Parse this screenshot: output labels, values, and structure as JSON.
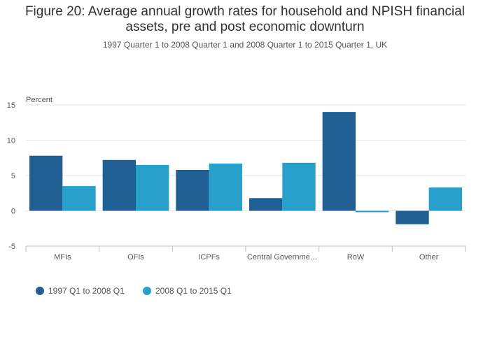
{
  "header": {
    "title_line1": "Figure 20: Average annual growth rates for household and NPISH financial",
    "title_line2": "assets, pre and post economic downturn",
    "subtitle": "1997 Quarter 1 to 2008 Quarter 1 and 2008 Quarter 1 to 2015 Quarter 1, UK"
  },
  "chart_data": {
    "type": "bar",
    "title": "Figure 20: Average annual growth rates for household and NPISH financial assets, pre and post economic downturn",
    "subtitle": "1997 Quarter 1 to 2008 Quarter 1 and 2008 Quarter 1 to 2015 Quarter 1, UK",
    "ylabel": "Percent",
    "xlabel": "",
    "categories": [
      "MFIs",
      "OFIs",
      "ICPFs",
      "Central Governme…",
      "RoW",
      "Other"
    ],
    "series": [
      {
        "name": "1997 Q1 to 2008 Q1",
        "color": "#206095",
        "values": [
          7.8,
          7.2,
          5.8,
          1.8,
          14.0,
          -1.9
        ]
      },
      {
        "name": "2008 Q1 to 2015 Q1",
        "color": "#27a0cc",
        "values": [
          3.5,
          6.5,
          6.7,
          6.8,
          -0.2,
          3.3
        ]
      }
    ],
    "ylim": [
      -5,
      15
    ],
    "yticks": [
      15,
      10,
      5,
      0,
      -5
    ],
    "ytick_labels": [
      "15",
      "10",
      "5",
      "0",
      "-5"
    ],
    "grid": true,
    "legend_position": "bottom-left"
  }
}
